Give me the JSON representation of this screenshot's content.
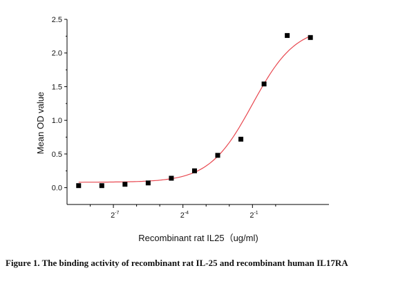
{
  "caption": "Figure 1. The binding activity of recombinant rat IL-25 and recombinant human IL17RA",
  "chart_data": {
    "type": "scatter",
    "title": "",
    "xlabel": "Recombinant rat IL25（ug/ml)",
    "ylabel": "Mean OD value",
    "x_scale": "log2",
    "xlim": [
      -9.0,
      -0.2
    ],
    "ylim": [
      -0.25,
      2.5
    ],
    "y_ticks": [
      "0.0",
      "0.5",
      "1.0",
      "1.5",
      "2.0",
      "2.5"
    ],
    "x_tick_labels": [
      {
        "base": "2",
        "exp": "-7"
      },
      {
        "base": "2",
        "exp": "-4"
      },
      {
        "base": "2",
        "exp": "-1"
      }
    ],
    "x_tick_values": [
      -7,
      -4,
      -1
    ],
    "x_minor_tick_values": [
      -8,
      -6,
      -5,
      -3,
      -2,
      0
    ],
    "grid": false,
    "colors": {
      "points": "#000000",
      "fit_curve": "#e8474f",
      "axes": "#000000"
    },
    "series": [
      {
        "marker": "square",
        "points": [
          {
            "x": -8.5,
            "y": 0.03
          },
          {
            "x": -7.5,
            "y": 0.03
          },
          {
            "x": -6.5,
            "y": 0.05
          },
          {
            "x": -5.5,
            "y": 0.07
          },
          {
            "x": -4.5,
            "y": 0.14
          },
          {
            "x": -3.5,
            "y": 0.25
          },
          {
            "x": -2.5,
            "y": 0.48
          },
          {
            "x": -1.5,
            "y": 0.72
          },
          {
            "x": -0.5,
            "y": 1.54
          },
          {
            "x": 0.5,
            "y": 2.26
          },
          {
            "x": 1.5,
            "y": 2.23
          }
        ]
      }
    ],
    "fit": {
      "model": "4PL sigmoid",
      "bottom": 0.08,
      "top": 2.4,
      "midpoint_log2": -1.0,
      "hill": 1.55,
      "x_range": [
        -8.5,
        1.5
      ]
    }
  }
}
